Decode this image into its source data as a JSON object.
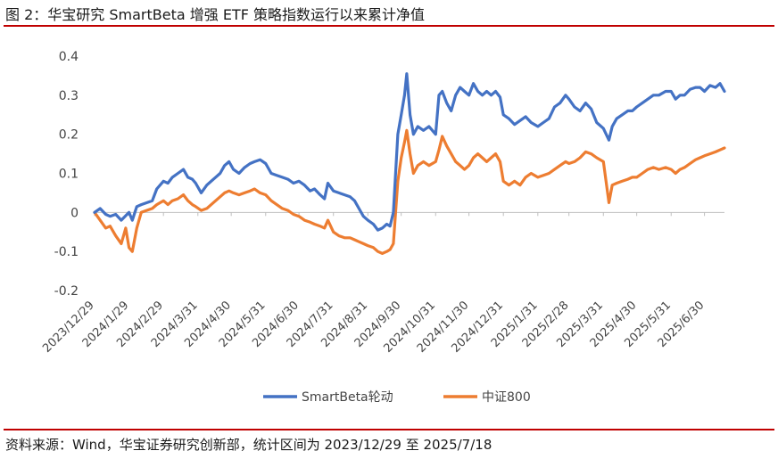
{
  "header": {
    "title": "图 2：华宝研究 SmartBeta 增强 ETF 策略指数运行以来累计净值"
  },
  "footer": {
    "source": "资料来源：Wind，华宝证券研究创新部，统计区间为 2023/12/29 至 2025/7/18"
  },
  "colors": {
    "accent": "#c00000",
    "series1": "#4472c4",
    "series2": "#ed7d31"
  },
  "chart_data": {
    "type": "line",
    "title": "",
    "xlabel": "",
    "ylabel": "",
    "ylim": [
      -0.2,
      0.4
    ],
    "yticks": [
      "0.4",
      "0.3",
      "0.2",
      "0.1",
      "0",
      "-0.1",
      "-0.2"
    ],
    "grid": false,
    "legend": "bottom",
    "xticks": [
      "2023/12/29",
      "2024/1/29",
      "2024/2/29",
      "2024/3/31",
      "2024/4/30",
      "2024/5/31",
      "2024/6/30",
      "2024/7/31",
      "2024/8/31",
      "2024/9/30",
      "2024/10/31",
      "2024/11/30",
      "2024/12/31",
      "2025/1/31",
      "2025/2/28",
      "2025/3/31",
      "2025/4/30",
      "2025/5/31",
      "2025/6/30"
    ],
    "series": [
      {
        "name": "SmartBeta轮动",
        "values": [
          [
            "2023/12/29",
            0
          ],
          [
            "2024/1/3",
            0.01
          ],
          [
            "2024/1/8",
            -0.005
          ],
          [
            "2024/1/12",
            -0.01
          ],
          [
            "2024/1/17",
            -0.005
          ],
          [
            "2024/1/22",
            -0.02
          ],
          [
            "2024/1/29",
            0
          ],
          [
            "2024/2/1",
            -0.02
          ],
          [
            "2024/2/5",
            0.015
          ],
          [
            "2024/2/9",
            0.02
          ],
          [
            "2024/2/19",
            0.03
          ],
          [
            "2024/2/23",
            0.06
          ],
          [
            "2024/2/29",
            0.08
          ],
          [
            "2024/3/4",
            0.075
          ],
          [
            "2024/3/8",
            0.09
          ],
          [
            "2024/3/13",
            0.1
          ],
          [
            "2024/3/18",
            0.11
          ],
          [
            "2024/3/22",
            0.09
          ],
          [
            "2024/3/26",
            0.085
          ],
          [
            "2024/3/29",
            0.075
          ],
          [
            "2024/4/3",
            0.05
          ],
          [
            "2024/4/8",
            0.07
          ],
          [
            "2024/4/12",
            0.08
          ],
          [
            "2024/4/16",
            0.09
          ],
          [
            "2024/4/20",
            0.1
          ],
          [
            "2024/4/24",
            0.12
          ],
          [
            "2024/4/28",
            0.13
          ],
          [
            "2024/5/2",
            0.11
          ],
          [
            "2024/5/7",
            0.1
          ],
          [
            "2024/5/12",
            0.115
          ],
          [
            "2024/5/17",
            0.125
          ],
          [
            "2024/5/21",
            0.13
          ],
          [
            "2024/5/26",
            0.135
          ],
          [
            "2024/5/31",
            0.125
          ],
          [
            "2024/6/5",
            0.1
          ],
          [
            "2024/6/10",
            0.095
          ],
          [
            "2024/6/15",
            0.09
          ],
          [
            "2024/6/20",
            0.085
          ],
          [
            "2024/6/25",
            0.075
          ],
          [
            "2024/6/30",
            0.08
          ],
          [
            "2024/7/5",
            0.07
          ],
          [
            "2024/7/10",
            0.055
          ],
          [
            "2024/7/14",
            0.06
          ],
          [
            "2024/7/19",
            0.045
          ],
          [
            "2024/7/23",
            0.035
          ],
          [
            "2024/7/26",
            0.075
          ],
          [
            "2024/7/31",
            0.055
          ],
          [
            "2024/8/5",
            0.05
          ],
          [
            "2024/8/10",
            0.045
          ],
          [
            "2024/8/15",
            0.04
          ],
          [
            "2024/8/19",
            0.03
          ],
          [
            "2024/8/23",
            0.01
          ],
          [
            "2024/8/27",
            -0.01
          ],
          [
            "2024/8/31",
            -0.02
          ],
          [
            "2024/9/5",
            -0.03
          ],
          [
            "2024/9/9",
            -0.045
          ],
          [
            "2024/9/13",
            -0.04
          ],
          [
            "2024/9/17",
            -0.03
          ],
          [
            "2024/9/20",
            -0.035
          ],
          [
            "2024/9/23",
            0
          ],
          [
            "2024/9/25",
            0.1
          ],
          [
            "2024/9/27",
            0.2
          ],
          [
            "2024/9/30",
            0.25
          ],
          [
            "2024/10/3",
            0.3
          ],
          [
            "2024/10/5",
            0.355
          ],
          [
            "2024/10/8",
            0.25
          ],
          [
            "2024/10/11",
            0.2
          ],
          [
            "2024/10/15",
            0.22
          ],
          [
            "2024/10/20",
            0.21
          ],
          [
            "2024/10/25",
            0.22
          ],
          [
            "2024/10/31",
            0.2
          ],
          [
            "2024/11/3",
            0.3
          ],
          [
            "2024/11/6",
            0.31
          ],
          [
            "2024/11/10",
            0.28
          ],
          [
            "2024/11/14",
            0.26
          ],
          [
            "2024/11/18",
            0.3
          ],
          [
            "2024/11/22",
            0.32
          ],
          [
            "2024/11/26",
            0.31
          ],
          [
            "2024/11/30",
            0.3
          ],
          [
            "2024/12/4",
            0.33
          ],
          [
            "2024/12/8",
            0.31
          ],
          [
            "2024/12/12",
            0.3
          ],
          [
            "2024/12/16",
            0.31
          ],
          [
            "2024/12/20",
            0.3
          ],
          [
            "2024/12/24",
            0.31
          ],
          [
            "2024/12/28",
            0.295
          ],
          [
            "2024/12/31",
            0.25
          ],
          [
            "2025/1/5",
            0.24
          ],
          [
            "2025/1/10",
            0.225
          ],
          [
            "2025/1/15",
            0.235
          ],
          [
            "2025/1/20",
            0.245
          ],
          [
            "2025/1/25",
            0.23
          ],
          [
            "2025/1/31",
            0.22
          ],
          [
            "2025/2/5",
            0.23
          ],
          [
            "2025/2/10",
            0.24
          ],
          [
            "2025/2/15",
            0.27
          ],
          [
            "2025/2/20",
            0.28
          ],
          [
            "2025/2/25",
            0.3
          ],
          [
            "2025/2/28",
            0.29
          ],
          [
            "2025/3/5",
            0.27
          ],
          [
            "2025/3/10",
            0.26
          ],
          [
            "2025/3/15",
            0.28
          ],
          [
            "2025/3/20",
            0.265
          ],
          [
            "2025/3/25",
            0.23
          ],
          [
            "2025/3/31",
            0.215
          ],
          [
            "2025/4/5",
            0.185
          ],
          [
            "2025/4/8",
            0.22
          ],
          [
            "2025/4/12",
            0.24
          ],
          [
            "2025/4/17",
            0.25
          ],
          [
            "2025/4/22",
            0.26
          ],
          [
            "2025/4/26",
            0.26
          ],
          [
            "2025/4/30",
            0.27
          ],
          [
            "2025/5/5",
            0.28
          ],
          [
            "2025/5/10",
            0.29
          ],
          [
            "2025/5/15",
            0.3
          ],
          [
            "2025/5/20",
            0.3
          ],
          [
            "2025/5/26",
            0.31
          ],
          [
            "2025/5/31",
            0.31
          ],
          [
            "2025/6/4",
            0.29
          ],
          [
            "2025/6/8",
            0.3
          ],
          [
            "2025/6/12",
            0.3
          ],
          [
            "2025/6/17",
            0.315
          ],
          [
            "2025/6/22",
            0.32
          ],
          [
            "2025/6/26",
            0.32
          ],
          [
            "2025/6/30",
            0.31
          ],
          [
            "2025/7/5",
            0.325
          ],
          [
            "2025/7/10",
            0.32
          ],
          [
            "2025/7/14",
            0.33
          ],
          [
            "2025/7/18",
            0.31
          ]
        ]
      },
      {
        "name": "中证800",
        "values": [
          [
            "2023/12/29",
            0
          ],
          [
            "2024/1/3",
            -0.02
          ],
          [
            "2024/1/8",
            -0.04
          ],
          [
            "2024/1/12",
            -0.035
          ],
          [
            "2024/1/17",
            -0.06
          ],
          [
            "2024/1/22",
            -0.08
          ],
          [
            "2024/1/26",
            -0.04
          ],
          [
            "2024/1/29",
            -0.09
          ],
          [
            "2024/2/1",
            -0.1
          ],
          [
            "2024/2/5",
            -0.04
          ],
          [
            "2024/2/9",
            0
          ],
          [
            "2024/2/19",
            0.01
          ],
          [
            "2024/2/23",
            0.02
          ],
          [
            "2024/2/29",
            0.03
          ],
          [
            "2024/3/4",
            0.02
          ],
          [
            "2024/3/8",
            0.03
          ],
          [
            "2024/3/13",
            0.035
          ],
          [
            "2024/3/18",
            0.045
          ],
          [
            "2024/3/22",
            0.03
          ],
          [
            "2024/3/26",
            0.02
          ],
          [
            "2024/3/29",
            0.015
          ],
          [
            "2024/4/3",
            0.005
          ],
          [
            "2024/4/8",
            0.01
          ],
          [
            "2024/4/12",
            0.02
          ],
          [
            "2024/4/16",
            0.03
          ],
          [
            "2024/4/20",
            0.04
          ],
          [
            "2024/4/24",
            0.05
          ],
          [
            "2024/4/28",
            0.055
          ],
          [
            "2024/5/2",
            0.05
          ],
          [
            "2024/5/7",
            0.045
          ],
          [
            "2024/5/12",
            0.05
          ],
          [
            "2024/5/17",
            0.055
          ],
          [
            "2024/5/21",
            0.06
          ],
          [
            "2024/5/26",
            0.05
          ],
          [
            "2024/5/31",
            0.045
          ],
          [
            "2024/6/5",
            0.03
          ],
          [
            "2024/6/10",
            0.02
          ],
          [
            "2024/6/15",
            0.01
          ],
          [
            "2024/6/20",
            0.005
          ],
          [
            "2024/6/25",
            -0.005
          ],
          [
            "2024/6/30",
            -0.01
          ],
          [
            "2024/7/5",
            -0.02
          ],
          [
            "2024/7/10",
            -0.025
          ],
          [
            "2024/7/14",
            -0.03
          ],
          [
            "2024/7/19",
            -0.035
          ],
          [
            "2024/7/23",
            -0.04
          ],
          [
            "2024/7/26",
            -0.02
          ],
          [
            "2024/7/31",
            -0.05
          ],
          [
            "2024/8/5",
            -0.06
          ],
          [
            "2024/8/10",
            -0.065
          ],
          [
            "2024/8/15",
            -0.065
          ],
          [
            "2024/8/19",
            -0.07
          ],
          [
            "2024/8/23",
            -0.075
          ],
          [
            "2024/8/27",
            -0.08
          ],
          [
            "2024/8/31",
            -0.085
          ],
          [
            "2024/9/5",
            -0.09
          ],
          [
            "2024/9/9",
            -0.1
          ],
          [
            "2024/9/13",
            -0.105
          ],
          [
            "2024/9/17",
            -0.1
          ],
          [
            "2024/9/20",
            -0.095
          ],
          [
            "2024/9/23",
            -0.08
          ],
          [
            "2024/9/25",
            0
          ],
          [
            "2024/9/27",
            0.08
          ],
          [
            "2024/9/30",
            0.14
          ],
          [
            "2024/10/3",
            0.18
          ],
          [
            "2024/10/5",
            0.21
          ],
          [
            "2024/10/8",
            0.15
          ],
          [
            "2024/10/11",
            0.1
          ],
          [
            "2024/10/15",
            0.12
          ],
          [
            "2024/10/20",
            0.13
          ],
          [
            "2024/10/25",
            0.12
          ],
          [
            "2024/10/31",
            0.13
          ],
          [
            "2024/11/3",
            0.16
          ],
          [
            "2024/11/6",
            0.195
          ],
          [
            "2024/11/10",
            0.17
          ],
          [
            "2024/11/14",
            0.15
          ],
          [
            "2024/11/18",
            0.13
          ],
          [
            "2024/11/22",
            0.12
          ],
          [
            "2024/11/26",
            0.11
          ],
          [
            "2024/11/30",
            0.12
          ],
          [
            "2024/12/4",
            0.14
          ],
          [
            "2024/12/8",
            0.15
          ],
          [
            "2024/12/12",
            0.14
          ],
          [
            "2024/12/16",
            0.13
          ],
          [
            "2024/12/20",
            0.14
          ],
          [
            "2024/12/24",
            0.15
          ],
          [
            "2024/12/28",
            0.13
          ],
          [
            "2024/12/31",
            0.08
          ],
          [
            "2025/1/5",
            0.07
          ],
          [
            "2025/1/10",
            0.08
          ],
          [
            "2025/1/15",
            0.07
          ],
          [
            "2025/1/20",
            0.09
          ],
          [
            "2025/1/25",
            0.1
          ],
          [
            "2025/1/31",
            0.09
          ],
          [
            "2025/2/5",
            0.095
          ],
          [
            "2025/2/10",
            0.1
          ],
          [
            "2025/2/15",
            0.11
          ],
          [
            "2025/2/20",
            0.12
          ],
          [
            "2025/2/25",
            0.13
          ],
          [
            "2025/2/28",
            0.125
          ],
          [
            "2025/3/5",
            0.13
          ],
          [
            "2025/3/10",
            0.14
          ],
          [
            "2025/3/15",
            0.155
          ],
          [
            "2025/3/20",
            0.15
          ],
          [
            "2025/3/25",
            0.14
          ],
          [
            "2025/3/31",
            0.13
          ],
          [
            "2025/4/5",
            0.025
          ],
          [
            "2025/4/8",
            0.07
          ],
          [
            "2025/4/12",
            0.075
          ],
          [
            "2025/4/17",
            0.08
          ],
          [
            "2025/4/22",
            0.085
          ],
          [
            "2025/4/26",
            0.09
          ],
          [
            "2025/4/30",
            0.09
          ],
          [
            "2025/5/5",
            0.1
          ],
          [
            "2025/5/10",
            0.11
          ],
          [
            "2025/5/15",
            0.115
          ],
          [
            "2025/5/20",
            0.11
          ],
          [
            "2025/5/26",
            0.115
          ],
          [
            "2025/5/31",
            0.11
          ],
          [
            "2025/6/4",
            0.1
          ],
          [
            "2025/6/8",
            0.11
          ],
          [
            "2025/6/12",
            0.115
          ],
          [
            "2025/6/17",
            0.125
          ],
          [
            "2025/6/22",
            0.135
          ],
          [
            "2025/6/26",
            0.14
          ],
          [
            "2025/6/30",
            0.145
          ],
          [
            "2025/7/5",
            0.15
          ],
          [
            "2025/7/10",
            0.155
          ],
          [
            "2025/7/14",
            0.16
          ],
          [
            "2025/7/18",
            0.165
          ]
        ]
      }
    ]
  }
}
